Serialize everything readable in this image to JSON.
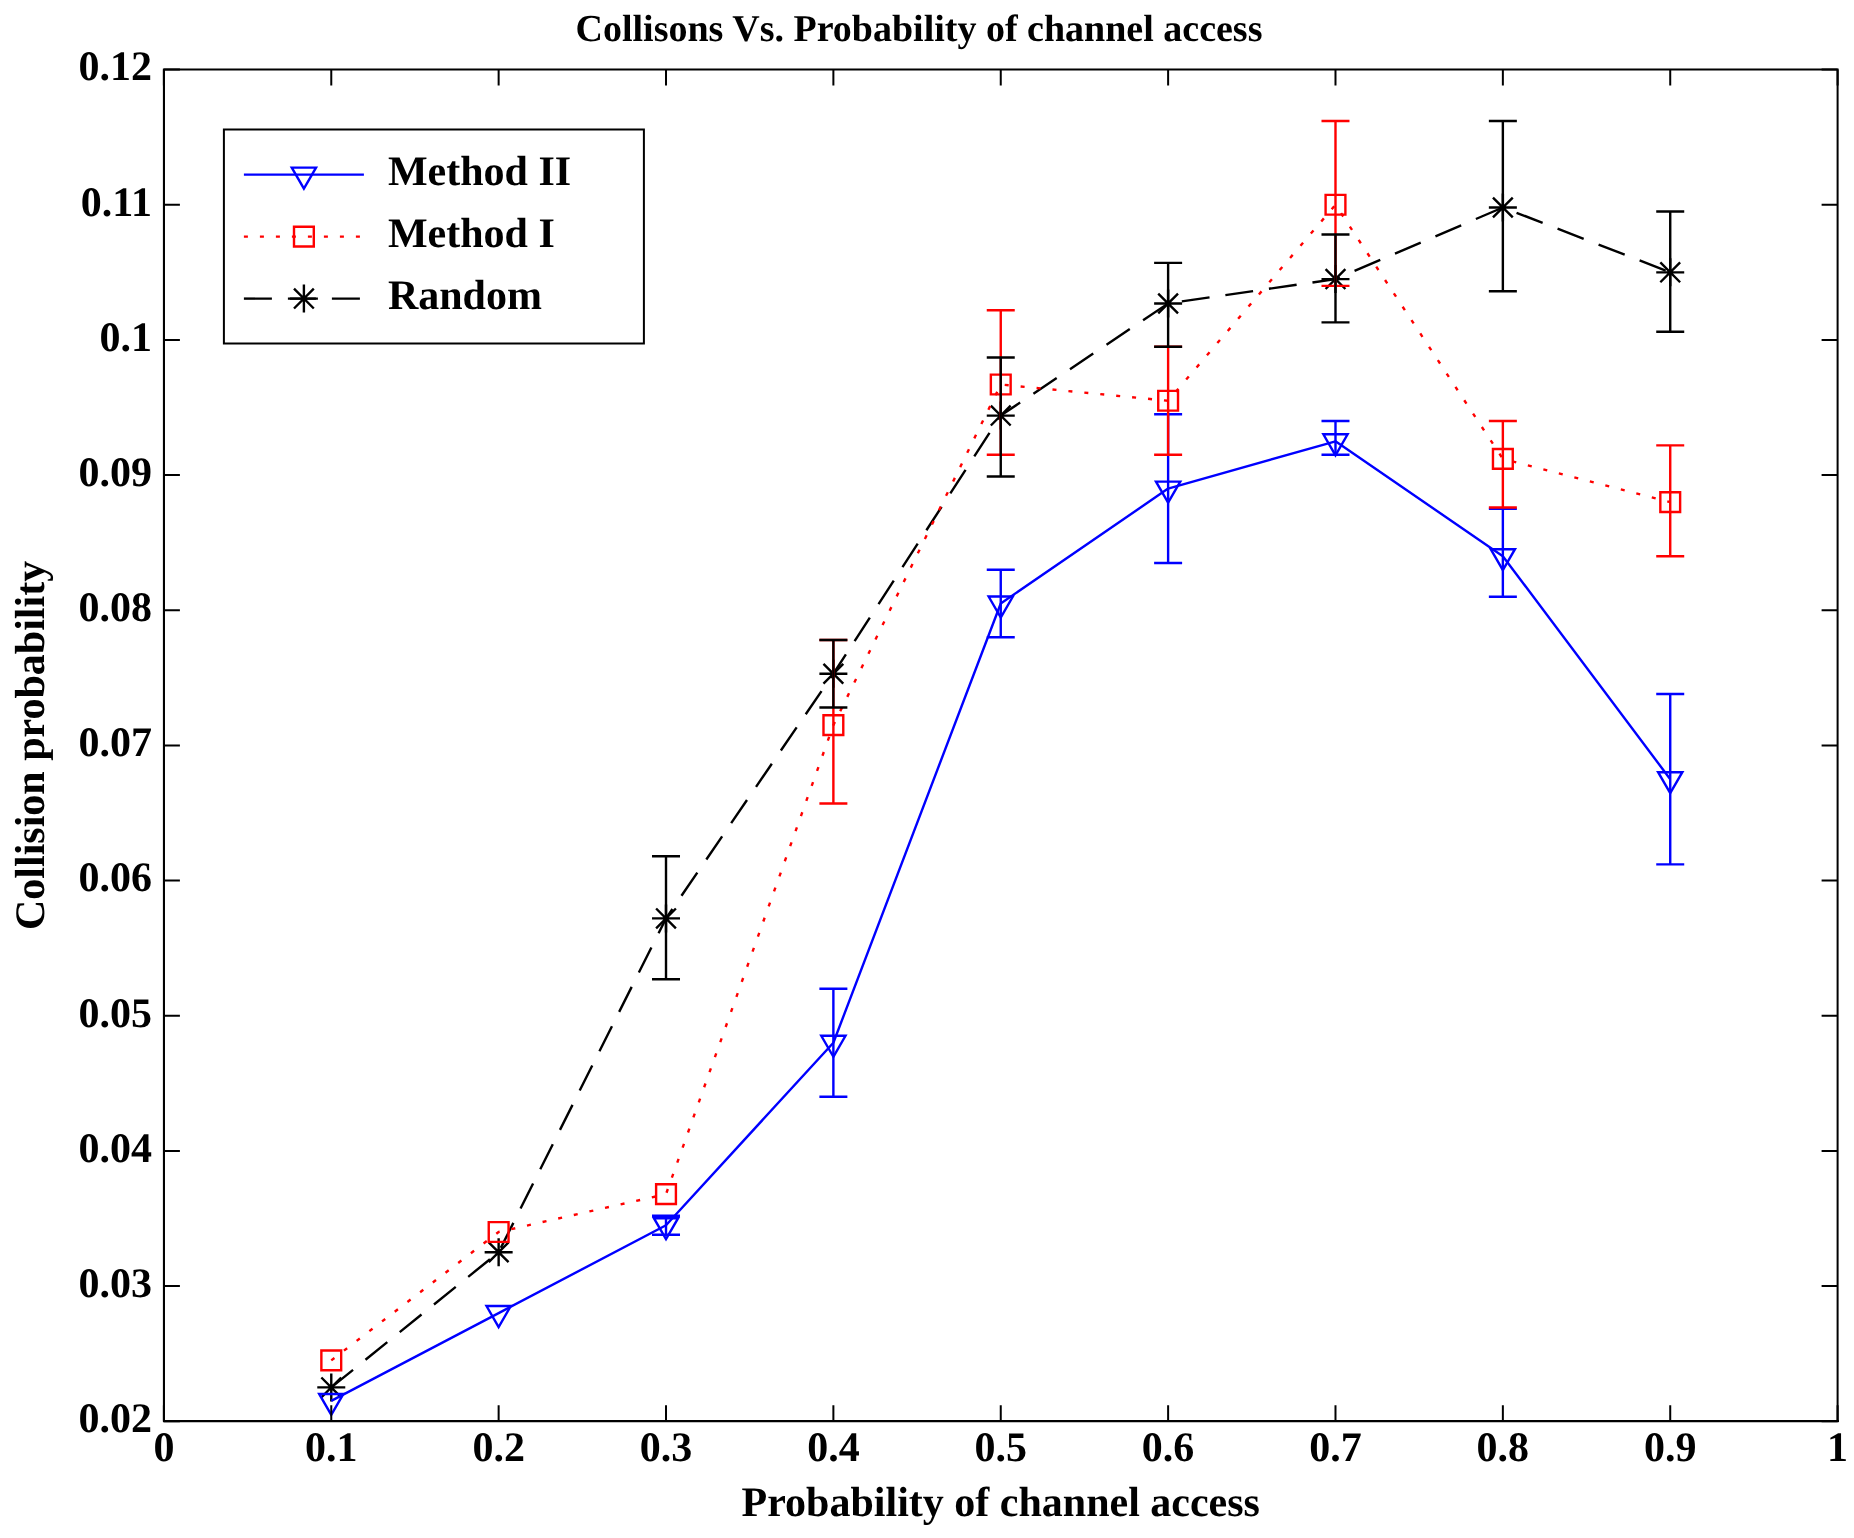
{
  "chart_data": {
    "type": "line",
    "title": "Collisons Vs. Probability of channel access",
    "xlabel": "Probability of channel access",
    "ylabel": "Collision probability",
    "x": [
      0.1,
      0.2,
      0.3,
      0.4,
      0.5,
      0.6,
      0.7,
      0.8,
      0.9
    ],
    "xlim": [
      0,
      1
    ],
    "xticks": [
      0,
      0.1,
      0.2,
      0.3,
      0.4,
      0.5,
      0.6,
      0.7,
      0.8,
      0.9,
      1
    ],
    "ylim": [
      0.02,
      0.12
    ],
    "yticks": [
      0.02,
      0.03,
      0.04,
      0.05,
      0.06,
      0.07,
      0.08,
      0.09,
      0.1,
      0.11,
      0.12
    ],
    "grid": false,
    "legend": "top left",
    "series": [
      {
        "name": "Method II",
        "color": "#0000ff",
        "marker": "triangle",
        "line_style": "solid",
        "values": [
          0.0215,
          0.028,
          0.0345,
          0.048,
          0.0805,
          0.089,
          0.0925,
          0.084,
          0.0675
        ],
        "errors": [
          null,
          null,
          [
            0.0338,
            0.0352
          ],
          [
            0.044,
            0.052
          ],
          [
            0.078,
            0.083
          ],
          [
            0.0835,
            0.0945
          ],
          [
            0.0915,
            0.094
          ],
          [
            0.081,
            0.0875
          ],
          [
            0.0612,
            0.0738
          ]
        ]
      },
      {
        "name": "Method I",
        "color": "#ff0000",
        "marker": "square",
        "line_style": "dotted",
        "values": [
          0.0245,
          0.034,
          0.0368,
          0.0715,
          0.0967,
          0.0955,
          0.11,
          0.0912,
          0.088
        ],
        "errors": [
          null,
          null,
          null,
          [
            0.0657,
            0.0778
          ],
          [
            0.0915,
            0.1022
          ],
          [
            0.0915,
            0.0995
          ],
          [
            0.104,
            0.1162
          ],
          [
            0.0876,
            0.094
          ],
          [
            0.084,
            0.0922
          ]
        ]
      },
      {
        "name": "Random",
        "color": "#000000",
        "marker": "cross",
        "line_style": "dashed",
        "values": [
          0.0225,
          0.0325,
          0.0572,
          0.0753,
          0.0944,
          0.1027,
          0.1045,
          0.1098,
          0.105
        ],
        "errors": [
          null,
          null,
          [
            0.0527,
            0.0618
          ],
          [
            0.0728,
            0.0778
          ],
          [
            0.0899,
            0.0987
          ],
          [
            0.0995,
            0.1057
          ],
          [
            0.1013,
            0.1078
          ],
          [
            0.1036,
            0.1162
          ],
          [
            0.1006,
            0.1095
          ]
        ]
      }
    ]
  }
}
